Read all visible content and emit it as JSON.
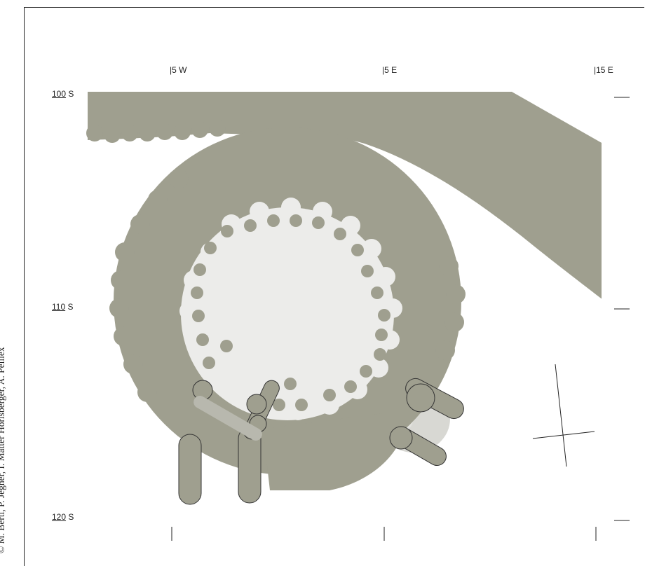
{
  "credit": "© M. Berti, P. Jegher, I. Matter Horisberger, A. Peillex",
  "grid": {
    "east_west": [
      {
        "label": "5 W"
      },
      {
        "label": "5 E"
      },
      {
        "label": "15 E"
      }
    ],
    "north_south": [
      {
        "major": "100",
        "suffix": " S"
      },
      {
        "major": "110",
        "suffix": " S"
      },
      {
        "major": "120",
        "suffix": " S"
      }
    ]
  },
  "colors": {
    "masonry": "#9f9f8f",
    "interior_floor": "#ececea",
    "foundation_light": "#d8d8d3",
    "lines": "#222222"
  },
  "features": {
    "ring_post_holes": 26,
    "drawing_type": "archaeological site plan, circular masonry structure"
  }
}
